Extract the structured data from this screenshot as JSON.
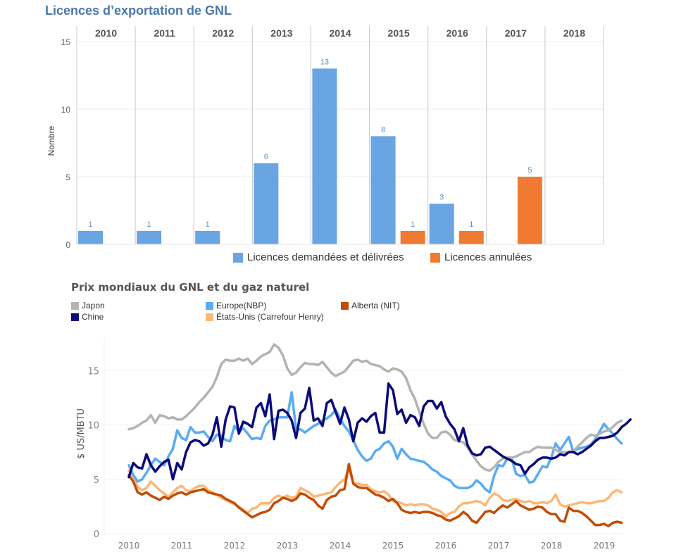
{
  "colors": {
    "title": "#4a78ad",
    "bar_blue": "#69a5e3",
    "bar_orange": "#f07a31",
    "grid": "#ececec",
    "year_divider": "#c8c8c8",
    "japon": "#b3b3b3",
    "chine": "#0b0b7a",
    "europe": "#5aabf2",
    "alberta": "#c24d07",
    "usa": "#fdb777"
  },
  "chart_data": [
    {
      "type": "bar",
      "title": "Licences d’exportation de GNL",
      "xlabel": "",
      "ylabel": "Nombre",
      "ylim": [
        0,
        15
      ],
      "yticks": [
        "0",
        "5",
        "10",
        "15"
      ],
      "grid": true,
      "legend_position": "bottom",
      "categories": [
        "2010",
        "2011",
        "2012",
        "2013",
        "2014",
        "2015",
        "2016",
        "2017",
        "2018"
      ],
      "series": [
        {
          "name": "Licences demandées et délivrées",
          "color": "#69a5e3",
          "values": [
            1,
            1,
            1,
            6,
            13,
            8,
            3,
            null,
            null
          ]
        },
        {
          "name": "Licences annulées",
          "color": "#f07a31",
          "values": [
            null,
            null,
            null,
            null,
            null,
            1,
            1,
            5,
            null
          ]
        }
      ]
    },
    {
      "type": "line",
      "title": "Prix mondiaux du GNL et du gaz naturel",
      "xlabel": "",
      "ylabel": "$ US/MBTU",
      "xlim": [
        2009.8,
        2019.3
      ],
      "ylim": [
        0,
        18
      ],
      "yticks": [
        "0",
        "5",
        "10",
        "15"
      ],
      "xticks": [
        "2010",
        "2011",
        "2012",
        "2013",
        "2014",
        "2015",
        "2016",
        "2017",
        "2018",
        "2019"
      ],
      "grid": true,
      "legend_position": "top",
      "x_start": 2010.0,
      "x_step": 0.0833,
      "series": [
        {
          "name": "Japon",
          "color": "#b3b3b3",
          "values": [
            9.6,
            9.7,
            9.9,
            10.2,
            10.4,
            10.9,
            10.2,
            10.9,
            10.8,
            10.6,
            10.7,
            10.5,
            10.5,
            10.8,
            11.2,
            11.6,
            12.1,
            12.5,
            13.0,
            13.5,
            14.4,
            15.6,
            16.0,
            15.9,
            15.9,
            16.1,
            15.9,
            16.1,
            15.6,
            15.9,
            16.3,
            16.5,
            16.7,
            17.4,
            17.1,
            16.4,
            15.2,
            14.6,
            14.8,
            15.3,
            15.7,
            15.6,
            15.6,
            15.5,
            15.8,
            15.3,
            14.8,
            14.5,
            14.7,
            14.9,
            15.4,
            15.9,
            16.0,
            15.8,
            15.9,
            15.6,
            15.5,
            15.4,
            15.1,
            14.9,
            15.2,
            15.1,
            14.9,
            14.3,
            13.2,
            12.4,
            11.2,
            10.1,
            9.2,
            8.8,
            8.8,
            9.3,
            9.4,
            9.1,
            8.6,
            8.5,
            8.4,
            7.9,
            7.3,
            6.7,
            6.2,
            5.9,
            5.8,
            6.1,
            6.6,
            6.9,
            7.0,
            7.0,
            7.1,
            7.3,
            7.5,
            7.5,
            7.8,
            8.0,
            7.9,
            7.9,
            7.9,
            7.7,
            7.5,
            7.5,
            7.5,
            7.6,
            8.0,
            8.4,
            8.8,
            9.1,
            9.0,
            9.2,
            9.4,
            9.5,
            9.8,
            10.2,
            10.4
          ]
        },
        {
          "name": "Chine",
          "color": "#0b0b7a",
          "values": [
            5.2,
            6.5,
            6.1,
            6.0,
            7.3,
            6.3,
            5.7,
            6.2,
            6.6,
            6.8,
            5.0,
            6.5,
            5.9,
            7.5,
            8.4,
            8.6,
            8.5,
            8.1,
            8.3,
            9.1,
            10.7,
            8.0,
            10.5,
            11.7,
            11.6,
            9.2,
            10.3,
            10.1,
            9.8,
            11.6,
            12.0,
            10.8,
            12.8,
            8.7,
            11.3,
            11.4,
            11.1,
            10.4,
            8.8,
            11.1,
            11.5,
            13.4,
            10.4,
            10.6,
            9.9,
            12.0,
            12.3,
            11.2,
            10.1,
            11.6,
            10.5,
            8.5,
            10.2,
            10.6,
            10.3,
            10.8,
            11.1,
            9.3,
            9.3,
            13.8,
            13.2,
            11.0,
            11.4,
            10.2,
            10.9,
            10.7,
            9.9,
            11.7,
            12.2,
            12.2,
            11.5,
            12.1,
            10.8,
            10.1,
            9.6,
            8.5,
            9.7,
            8.1,
            7.4,
            7.2,
            7.3,
            7.9,
            8.0,
            7.7,
            7.4,
            7.1,
            6.9,
            6.7,
            6.4,
            6.3,
            5.5,
            6.1,
            6.4,
            6.8,
            7.0,
            7.0,
            6.9,
            7.0,
            7.3,
            7.2,
            7.5,
            7.5,
            7.3,
            7.5,
            7.8,
            8.1,
            8.5,
            8.8,
            8.8,
            8.9,
            9.0,
            9.3,
            9.8,
            10.1,
            10.5
          ]
        },
        {
          "name": "Europe(NBP)",
          "color": "#5aabf2",
          "values": [
            6.3,
            5.4,
            4.8,
            5.0,
            5.6,
            6.3,
            6.9,
            6.6,
            6.3,
            7.1,
            7.8,
            9.5,
            8.8,
            8.6,
            9.8,
            9.3,
            9.3,
            9.4,
            8.9,
            8.5,
            9.1,
            9.0,
            8.6,
            8.5,
            9.9,
            9.4,
            9.7,
            9.2,
            8.7,
            8.8,
            8.7,
            9.9,
            10.4,
            10.5,
            10.7,
            10.7,
            10.7,
            13.0,
            9.6,
            9.6,
            9.3,
            9.6,
            9.9,
            10.1,
            10.4,
            10.6,
            10.9,
            11.4,
            10.6,
            9.9,
            9.4,
            8.6,
            7.7,
            7.1,
            6.7,
            6.9,
            7.6,
            7.8,
            8.3,
            8.5,
            8.0,
            6.9,
            7.8,
            7.3,
            6.9,
            6.8,
            6.7,
            6.6,
            6.3,
            5.9,
            5.7,
            5.3,
            5.1,
            4.9,
            4.4,
            4.2,
            4.2,
            4.2,
            4.4,
            4.9,
            4.6,
            4.1,
            3.8,
            5.3,
            6.3,
            6.2,
            6.9,
            6.9,
            5.5,
            5.3,
            5.4,
            4.7,
            4.8,
            5.5,
            6.2,
            6.1,
            7.0,
            8.3,
            7.7,
            8.3,
            8.9,
            7.5,
            7.8,
            7.9,
            8.0,
            8.2,
            8.7,
            9.4,
            10.1,
            9.6,
            9.2,
            8.7,
            8.3
          ]
        },
        {
          "name": "Alberta (NIT)",
          "color": "#c24d07",
          "values": [
            5.4,
            4.8,
            3.8,
            3.6,
            3.8,
            3.5,
            3.3,
            3.1,
            3.4,
            3.2,
            3.5,
            3.7,
            3.8,
            3.6,
            3.8,
            3.9,
            4.0,
            4.1,
            3.8,
            3.7,
            3.6,
            3.5,
            3.2,
            3.0,
            2.8,
            2.4,
            2.1,
            1.8,
            1.5,
            1.7,
            1.9,
            2.0,
            2.2,
            2.8,
            3.0,
            3.3,
            3.2,
            3.0,
            3.2,
            3.7,
            3.6,
            3.3,
            3.1,
            2.6,
            2.3,
            3.1,
            3.4,
            3.5,
            4.0,
            4.1,
            6.4,
            4.6,
            4.3,
            4.2,
            4.2,
            3.9,
            3.6,
            3.5,
            3.3,
            3.0,
            3.2,
            2.8,
            2.2,
            2.0,
            1.9,
            2.0,
            1.9,
            2.0,
            2.0,
            1.9,
            1.7,
            1.6,
            1.3,
            1.2,
            1.4,
            1.6,
            2.0,
            1.7,
            1.2,
            1.0,
            1.5,
            2.0,
            2.1,
            1.9,
            2.3,
            2.6,
            2.4,
            2.7,
            3.0,
            2.6,
            2.4,
            2.2,
            2.3,
            2.5,
            2.4,
            2.0,
            1.8,
            1.8,
            1.2,
            1.1,
            2.4,
            2.1,
            2.1,
            1.9,
            1.6,
            1.2,
            0.8,
            0.8,
            0.9,
            0.7,
            1.0,
            1.1,
            1.0
          ]
        },
        {
          "name": "États-Unis (Carrefour Henry)",
          "color": "#fdb777",
          "values": [
            5.8,
            5.3,
            4.3,
            4.0,
            4.2,
            4.8,
            4.4,
            4.0,
            3.7,
            3.4,
            3.8,
            4.2,
            4.4,
            4.0,
            3.9,
            4.2,
            4.4,
            4.4,
            4.0,
            3.8,
            3.6,
            3.3,
            3.1,
            2.9,
            2.7,
            2.5,
            2.2,
            1.9,
            2.3,
            2.4,
            2.8,
            2.8,
            2.8,
            3.3,
            3.5,
            3.3,
            3.5,
            3.3,
            3.4,
            4.2,
            4.0,
            3.8,
            3.4,
            3.5,
            3.6,
            3.7,
            3.8,
            4.3,
            4.7,
            5.0,
            6.0,
            4.7,
            4.6,
            4.5,
            4.5,
            4.1,
            3.9,
            3.8,
            3.9,
            3.6,
            3.0,
            2.9,
            2.8,
            2.6,
            2.7,
            2.6,
            2.7,
            2.7,
            2.6,
            2.3,
            2.2,
            2.0,
            1.6,
            1.9,
            2.0,
            2.5,
            2.8,
            2.8,
            2.9,
            3.0,
            2.9,
            2.6,
            3.3,
            3.7,
            3.5,
            3.1,
            3.0,
            3.1,
            3.2,
            3.0,
            2.9,
            3.0,
            2.8,
            2.8,
            2.9,
            2.8,
            3.0,
            3.6,
            2.7,
            2.5,
            2.6,
            2.7,
            2.8,
            2.9,
            2.8,
            2.8,
            2.9,
            3.0,
            3.0,
            3.3,
            3.8,
            4.0,
            3.8
          ]
        }
      ]
    }
  ]
}
